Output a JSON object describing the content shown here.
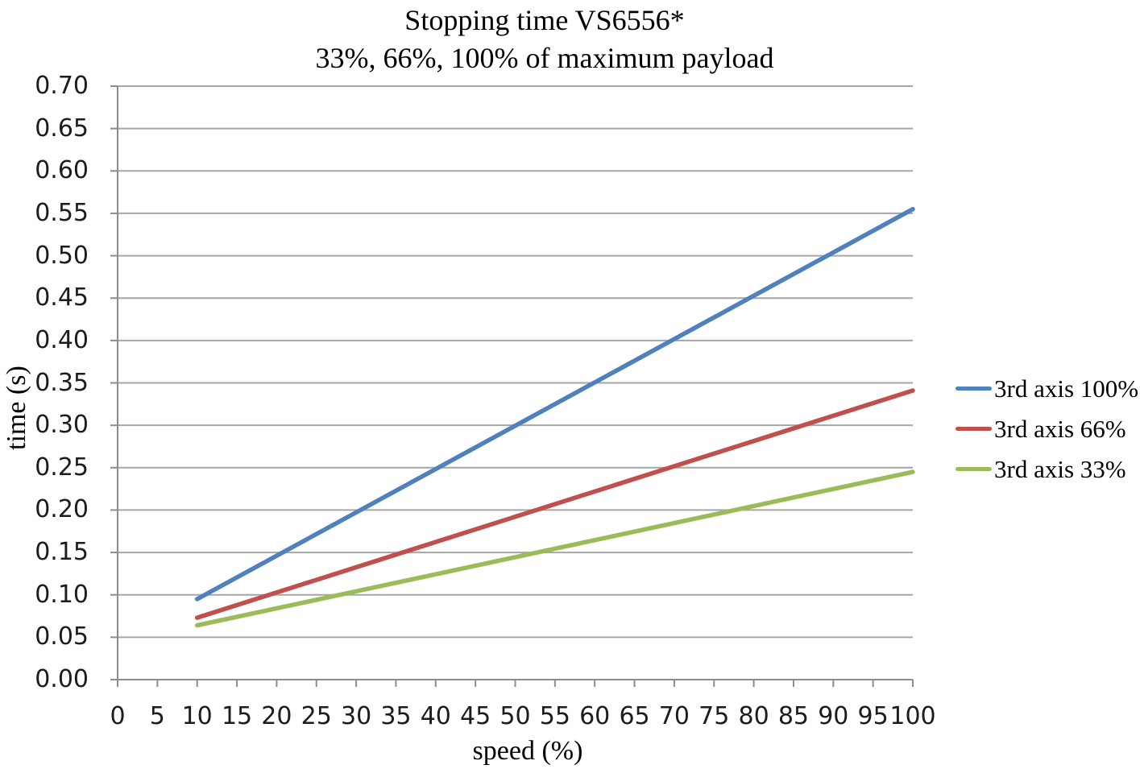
{
  "chart_data": {
    "type": "line",
    "title": "Stopping time VS6556*",
    "subtitle": "33%, 66%, 100% of maximum payload",
    "xlabel": "speed (%)",
    "ylabel": "time (s)",
    "xlim": [
      0,
      100
    ],
    "ylim": [
      0,
      0.7
    ],
    "x_ticks": [
      0,
      5,
      10,
      15,
      20,
      25,
      30,
      35,
      40,
      45,
      50,
      55,
      60,
      65,
      70,
      75,
      80,
      85,
      90,
      95,
      100
    ],
    "y_ticks": [
      0,
      0.05,
      0.1,
      0.15,
      0.2,
      0.25,
      0.3,
      0.35,
      0.4,
      0.45,
      0.5,
      0.55,
      0.6,
      0.65,
      0.7
    ],
    "y_tick_labels": [
      "0.00",
      "0.05",
      "0.10",
      "0.15",
      "0.20",
      "0.25",
      "0.30",
      "0.35",
      "0.40",
      "0.45",
      "0.50",
      "0.55",
      "0.60",
      "0.65",
      "0.70"
    ],
    "grid": "horizontal-only",
    "legend_position": "right-middle",
    "series": [
      {
        "name": "3rd axis 100%",
        "color": "#4F81BD",
        "x": [
          10,
          100
        ],
        "y": [
          0.095,
          0.555
        ]
      },
      {
        "name": "3rd axis 66%",
        "color": "#C0504D",
        "x": [
          10,
          100
        ],
        "y": [
          0.073,
          0.341
        ]
      },
      {
        "name": "3rd axis 33%",
        "color": "#9BBB59",
        "x": [
          10,
          100
        ],
        "y": [
          0.064,
          0.245
        ]
      }
    ]
  },
  "style": {
    "background": "#FFFFFF",
    "gridline_color": "#A6A6A6",
    "axis_color": "#8C8C8C",
    "text_color": "#000000"
  }
}
